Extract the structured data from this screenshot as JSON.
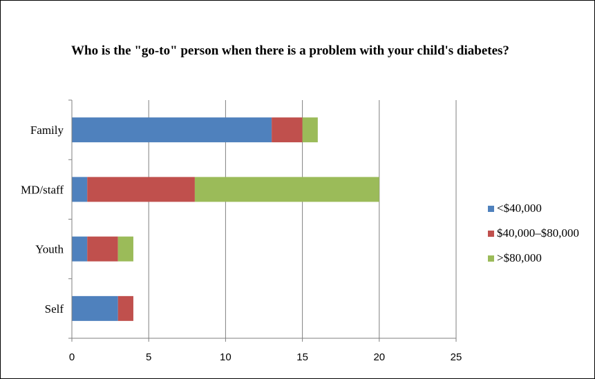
{
  "chart_data": {
    "type": "bar",
    "orientation": "horizontal",
    "stacked": true,
    "title": "Who is the \"go-to\" person when there is a problem with your child's diabetes?",
    "categories": [
      "Family",
      "MD/staff",
      "Youth",
      "Self"
    ],
    "series": [
      {
        "name": "<$40,000",
        "color": "#4f81bd",
        "values": [
          13,
          1,
          1,
          3
        ]
      },
      {
        "name": "$40,000–$80,000",
        "color": "#c0504d",
        "values": [
          2,
          7,
          2,
          1
        ]
      },
      {
        "name": ">$80,000",
        "color": "#9bbb59",
        "values": [
          1,
          12,
          1,
          0
        ]
      }
    ],
    "xlim": [
      0,
      25
    ],
    "xticks": [
      0,
      5,
      10,
      15,
      20,
      25
    ],
    "grid": "vertical major lines",
    "legend": "right"
  }
}
